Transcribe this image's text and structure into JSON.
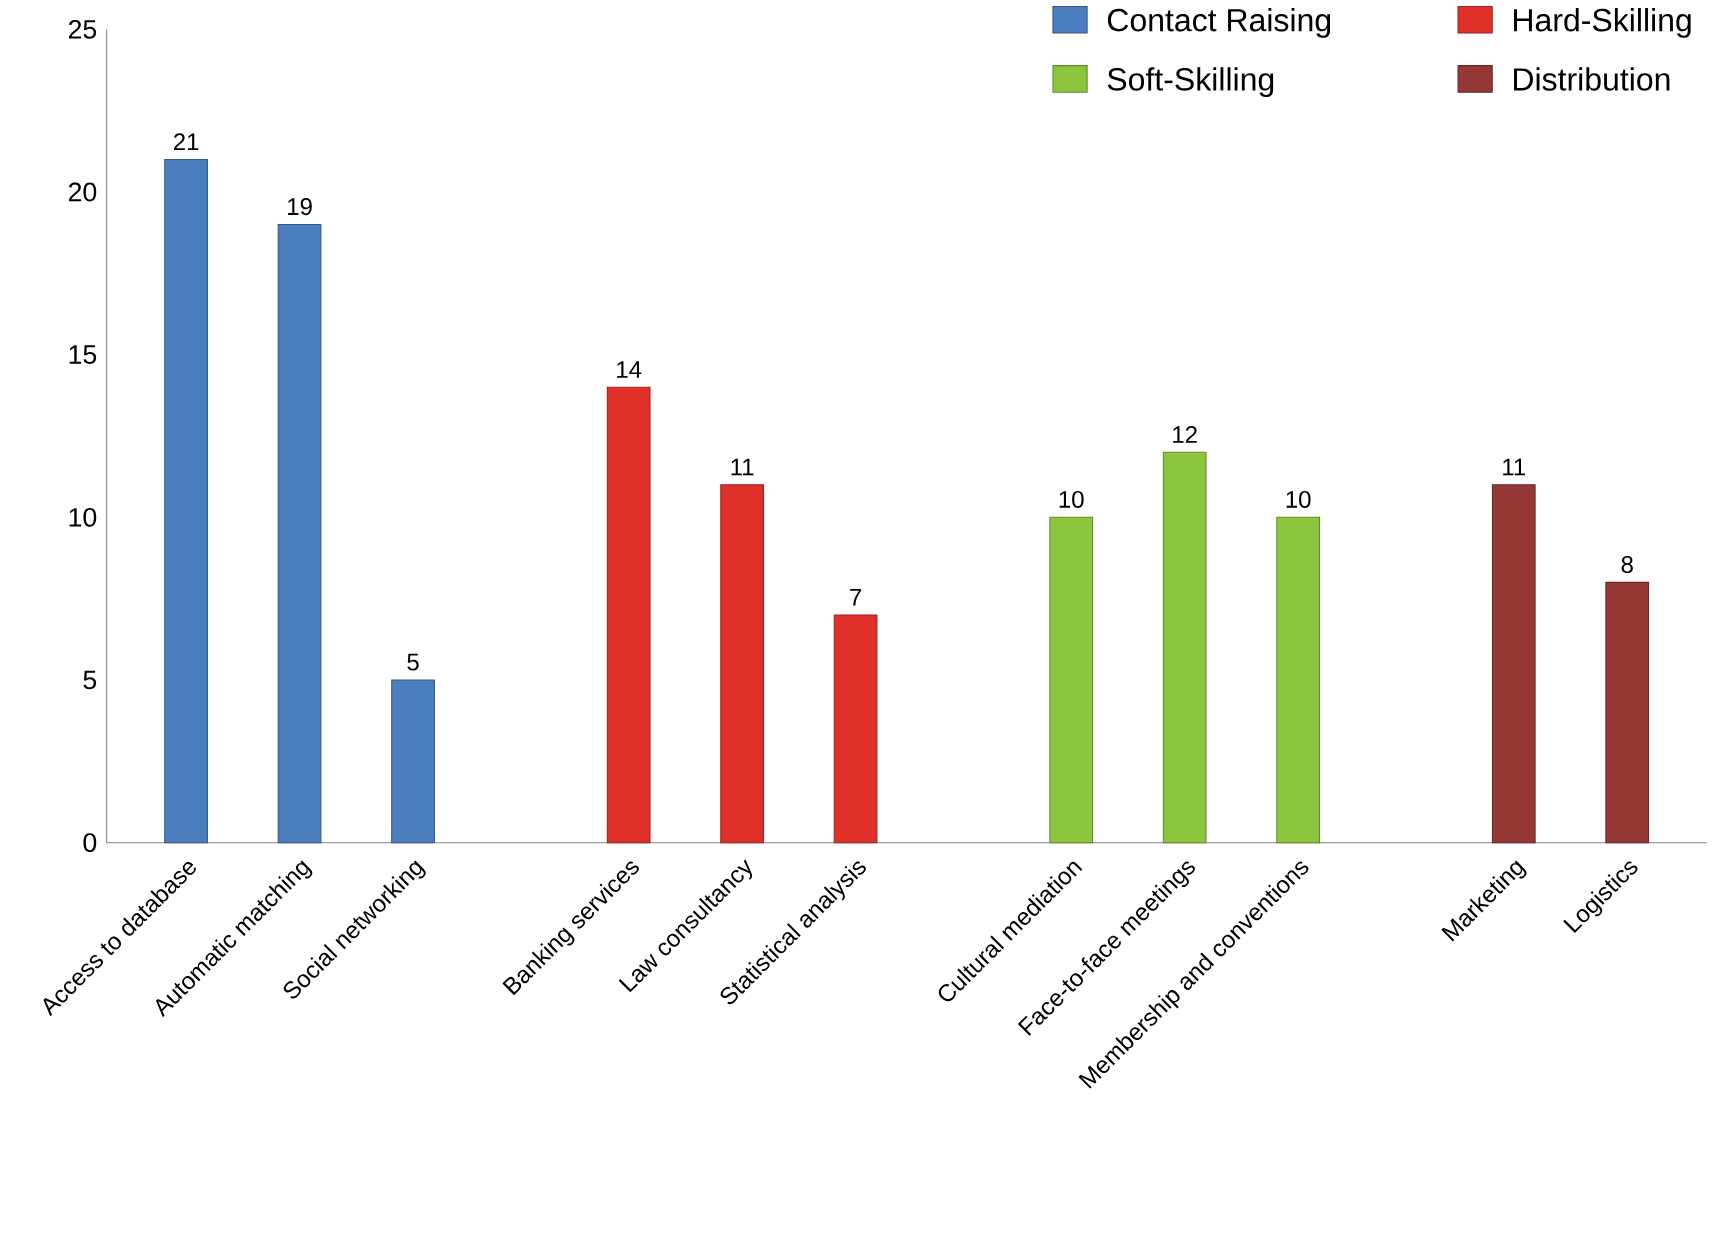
{
  "chart_data": {
    "type": "bar",
    "categories": [
      "Access to database",
      "Automatic matching",
      "Social networking",
      "Banking services",
      "Law consultancy",
      "Statistical analysis",
      "Cultural mediation",
      "Face-to-face meetings",
      "Membership and conventions",
      "Marketing",
      "Logistics"
    ],
    "series": [
      {
        "name": "Contact Raising",
        "color": "#4a7ebf",
        "values": [
          21,
          19,
          5,
          null,
          null,
          null,
          null,
          null,
          null,
          null,
          null
        ]
      },
      {
        "name": "Hard-Skilling",
        "color": "#e0302a",
        "values": [
          null,
          null,
          null,
          14,
          11,
          7,
          null,
          null,
          null,
          null,
          null
        ]
      },
      {
        "name": "Soft-Skilling",
        "color": "#8cc63f",
        "values": [
          null,
          null,
          null,
          null,
          null,
          null,
          10,
          12,
          10,
          null,
          null
        ]
      },
      {
        "name": "Distribution",
        "color": "#953735",
        "values": [
          null,
          null,
          null,
          null,
          null,
          null,
          null,
          null,
          null,
          11,
          8
        ]
      }
    ],
    "ylim": [
      0,
      25
    ],
    "yticks": [
      0,
      5,
      10,
      15,
      20,
      25
    ],
    "grid": false,
    "legend": "top right",
    "data_labels": true
  }
}
